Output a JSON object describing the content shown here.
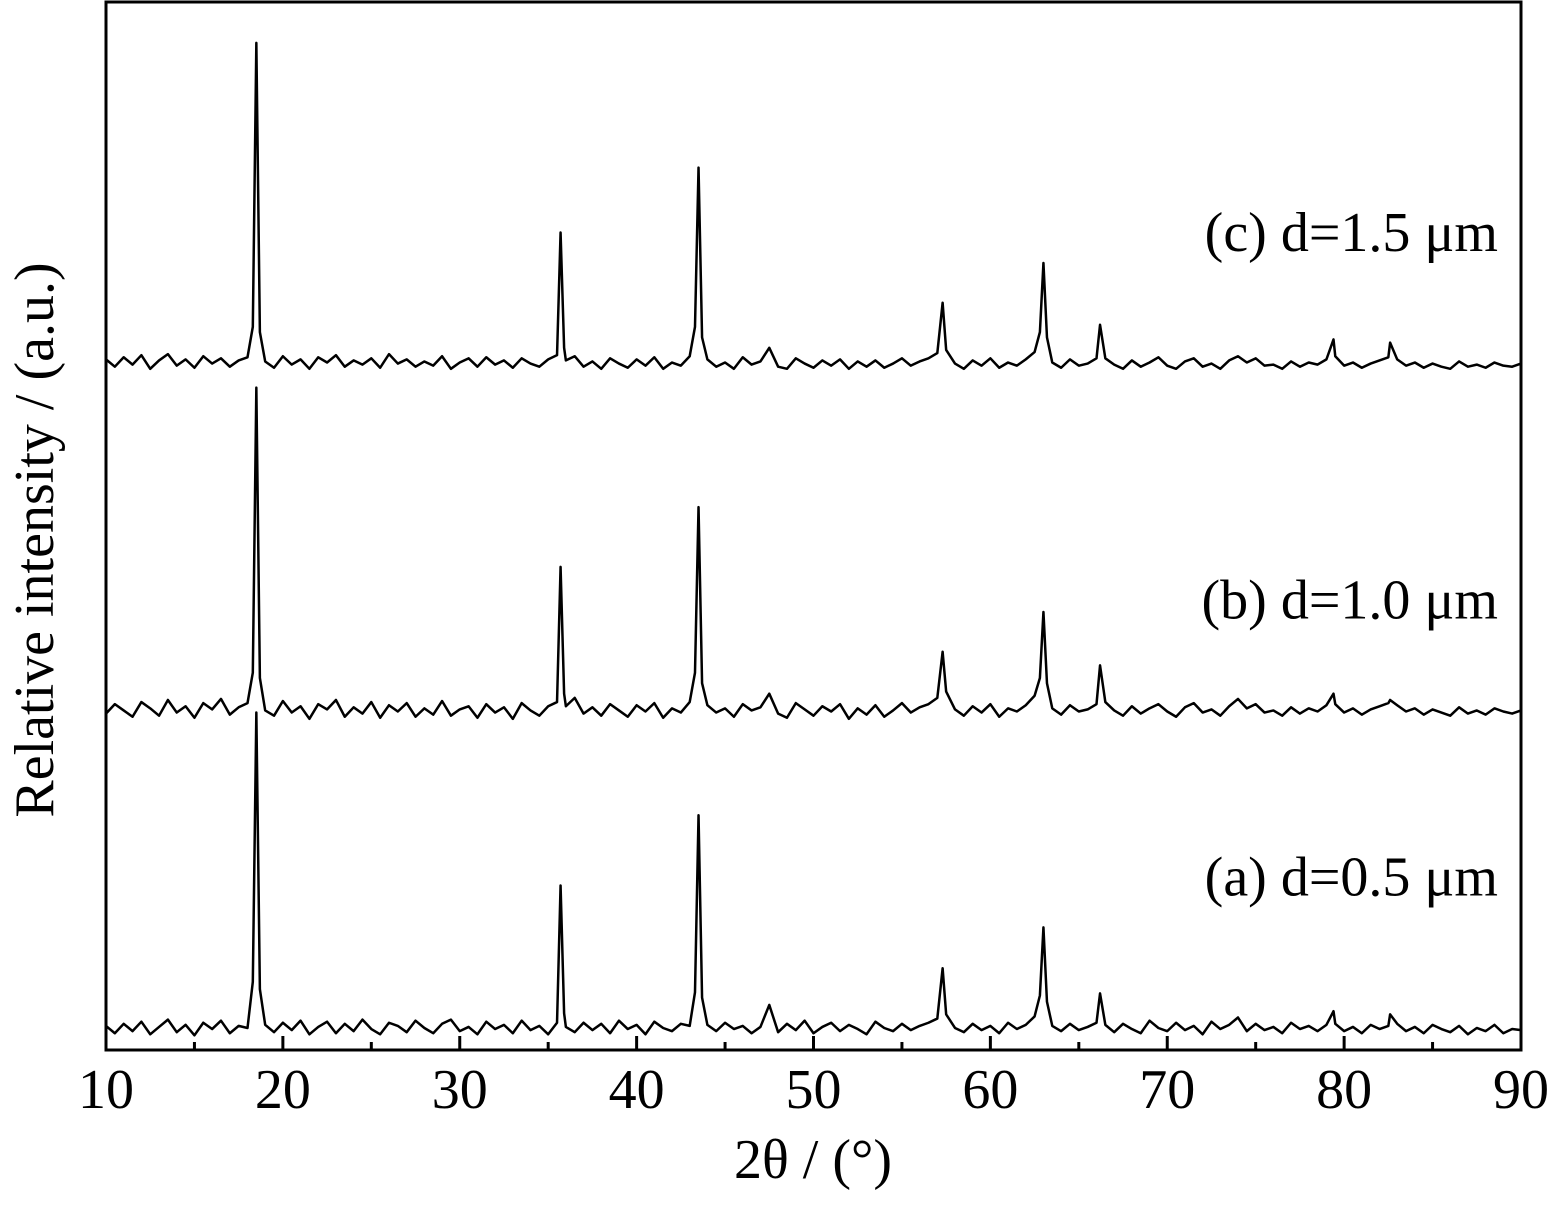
{
  "chart_data": {
    "type": "line",
    "x_label": "2θ / (°)",
    "y_label": "Relative intensity / (a.u.)",
    "xlim": [
      10,
      90
    ],
    "ylim": [
      0,
      100
    ],
    "xticks": [
      10,
      20,
      30,
      40,
      50,
      60,
      70,
      80,
      90
    ],
    "xticks_minor": [
      15,
      25,
      35,
      45,
      55,
      65,
      75,
      85
    ],
    "x": [
      10,
      10.5,
      11,
      11.5,
      12,
      12.5,
      13,
      13.5,
      14,
      14.5,
      15,
      15.5,
      16,
      16.5,
      17,
      17.5,
      18,
      18.3,
      18.5,
      18.7,
      19,
      19.5,
      20,
      20.5,
      21,
      21.5,
      22,
      22.5,
      23,
      23.5,
      24,
      24.5,
      25,
      25.5,
      26,
      26.5,
      27,
      27.5,
      28,
      28.5,
      29,
      29.5,
      30,
      30.5,
      31,
      31.5,
      32,
      32.5,
      33,
      33.5,
      34,
      34.5,
      35,
      35.5,
      35.7,
      35.9,
      36,
      36.5,
      37,
      37.5,
      38,
      38.5,
      39,
      39.5,
      40,
      40.5,
      41,
      41.5,
      42,
      42.5,
      43,
      43.3,
      43.5,
      43.7,
      44,
      44.5,
      45,
      45.5,
      46,
      46.5,
      47,
      47.5,
      48,
      48.5,
      49,
      49.5,
      50,
      50.5,
      51,
      51.5,
      52,
      52.5,
      53,
      53.5,
      54,
      54.5,
      55,
      55.5,
      56,
      56.5,
      57,
      57.3,
      57.5,
      58,
      58.5,
      59,
      59.5,
      60,
      60.5,
      61,
      61.5,
      62,
      62.5,
      62.8,
      63,
      63.2,
      63.5,
      64,
      64.5,
      65,
      65.5,
      66,
      66.2,
      66.5,
      67,
      67.5,
      68,
      68.5,
      69,
      69.5,
      70,
      70.5,
      71,
      71.5,
      72,
      72.5,
      73,
      73.5,
      74,
      74.5,
      75,
      75.5,
      76,
      76.5,
      77,
      77.5,
      78,
      78.5,
      79,
      79.4,
      79.5,
      80,
      80.5,
      81,
      81.5,
      82,
      82.5,
      82.6,
      83,
      83.5,
      84,
      84.5,
      85,
      85.5,
      86,
      86.5,
      87,
      87.5,
      88,
      88.5,
      89,
      89.5,
      90
    ],
    "color": "#000000",
    "series": [
      {
        "name": "(a) d=0.5 μm",
        "color": "#000000",
        "values": [
          2.3,
          1.6,
          2.5,
          1.8,
          2.7,
          1.5,
          2.2,
          2.9,
          1.7,
          2.4,
          1.4,
          2.6,
          2.0,
          2.8,
          1.6,
          2.3,
          2.1,
          6.5,
          32.2,
          5.8,
          2.4,
          1.7,
          2.6,
          1.9,
          2.8,
          1.5,
          2.2,
          2.7,
          1.6,
          2.5,
          1.8,
          2.9,
          2.0,
          1.5,
          2.6,
          2.3,
          1.7,
          2.8,
          2.1,
          1.6,
          2.5,
          2.9,
          1.8,
          2.2,
          1.5,
          2.7,
          2.0,
          2.4,
          1.6,
          2.8,
          1.9,
          2.3,
          1.5,
          2.6,
          15.7,
          3.5,
          2.2,
          1.7,
          2.6,
          1.9,
          2.5,
          1.6,
          2.8,
          2.0,
          2.4,
          1.5,
          2.7,
          2.1,
          1.8,
          2.5,
          2.3,
          5.5,
          22.4,
          5.0,
          2.4,
          1.8,
          2.6,
          2.0,
          2.3,
          1.6,
          2.2,
          4.3,
          1.7,
          2.5,
          1.9,
          2.8,
          1.6,
          2.2,
          2.6,
          1.8,
          2.4,
          2.0,
          1.5,
          2.7,
          2.1,
          1.8,
          2.5,
          1.9,
          2.3,
          2.6,
          3.0,
          7.8,
          3.4,
          2.1,
          1.7,
          2.5,
          1.9,
          2.3,
          1.6,
          2.6,
          2.0,
          2.4,
          3.2,
          5.2,
          11.7,
          4.6,
          2.3,
          1.8,
          2.5,
          1.9,
          2.2,
          2.6,
          5.4,
          2.4,
          1.7,
          2.5,
          2.0,
          1.6,
          2.8,
          2.1,
          1.8,
          2.6,
          1.9,
          2.3,
          1.5,
          2.7,
          2.0,
          2.4,
          3.1,
          1.8,
          2.5,
          1.9,
          2.2,
          1.6,
          2.6,
          2.0,
          2.3,
          1.8,
          2.4,
          3.7,
          2.5,
          1.8,
          2.2,
          1.6,
          2.4,
          2.0,
          2.3,
          3.4,
          2.5,
          1.8,
          2.2,
          1.6,
          2.4,
          2.0,
          1.7,
          2.3,
          1.5,
          2.1,
          1.8,
          2.4,
          1.6,
          2.0,
          1.9
        ]
      },
      {
        "name": "(b) d=1.0 μm",
        "color": "#000000",
        "values": [
          32.1,
          33.0,
          32.4,
          31.8,
          33.2,
          32.6,
          31.9,
          33.4,
          32.2,
          32.8,
          31.7,
          33.1,
          32.5,
          33.5,
          32.0,
          32.7,
          33.1,
          36.0,
          63.2,
          35.5,
          32.4,
          31.9,
          33.3,
          32.2,
          32.8,
          31.6,
          33.0,
          32.5,
          33.4,
          31.8,
          32.7,
          32.1,
          33.2,
          31.7,
          32.9,
          32.3,
          33.1,
          31.8,
          32.6,
          32.0,
          33.3,
          31.9,
          32.5,
          32.8,
          31.7,
          33.0,
          32.2,
          32.7,
          31.6,
          33.1,
          32.4,
          31.9,
          32.8,
          33.2,
          46.1,
          34.0,
          32.8,
          33.6,
          32.1,
          32.7,
          31.9,
          33.0,
          32.4,
          31.8,
          32.9,
          32.3,
          33.1,
          31.7,
          32.6,
          32.2,
          33.2,
          36.0,
          51.8,
          35.0,
          32.9,
          32.2,
          32.6,
          31.8,
          33.0,
          32.4,
          32.7,
          34.0,
          32.1,
          31.7,
          33.1,
          32.5,
          31.9,
          32.8,
          32.3,
          33.0,
          31.6,
          32.6,
          32.0,
          32.9,
          31.8,
          32.4,
          33.1,
          32.2,
          32.7,
          33.0,
          33.6,
          38.0,
          34.2,
          32.5,
          31.9,
          32.8,
          32.2,
          33.0,
          31.8,
          32.6,
          32.3,
          32.9,
          33.8,
          35.5,
          41.8,
          35.0,
          32.6,
          32.0,
          32.9,
          32.3,
          32.5,
          33.0,
          36.7,
          33.2,
          32.4,
          31.9,
          32.8,
          32.1,
          32.6,
          33.0,
          32.3,
          31.8,
          32.7,
          33.1,
          32.2,
          32.5,
          31.9,
          32.8,
          33.5,
          32.6,
          33.0,
          32.2,
          32.4,
          31.9,
          32.7,
          32.1,
          32.6,
          32.3,
          32.9,
          34.0,
          33.0,
          32.2,
          32.6,
          32.0,
          32.5,
          32.8,
          33.1,
          33.4,
          32.9,
          32.3,
          32.6,
          32.0,
          32.5,
          32.2,
          31.9,
          32.7,
          32.1,
          32.4,
          32.0,
          32.6,
          32.3,
          32.1,
          32.4
        ]
      },
      {
        "name": "(c) d=1.5 μm",
        "color": "#000000",
        "values": [
          65.9,
          65.2,
          66.1,
          65.4,
          66.3,
          65.0,
          65.8,
          66.4,
          65.3,
          65.9,
          65.1,
          66.2,
          65.5,
          66.0,
          65.2,
          65.8,
          66.1,
          69.0,
          96.1,
          68.5,
          65.7,
          65.1,
          66.2,
          65.4,
          65.9,
          65.0,
          66.1,
          65.6,
          66.3,
          65.2,
          65.8,
          65.4,
          66.0,
          65.1,
          66.4,
          65.5,
          65.9,
          65.2,
          65.7,
          65.3,
          66.2,
          65.0,
          65.6,
          66.0,
          65.2,
          66.1,
          65.4,
          65.8,
          65.1,
          66.0,
          65.5,
          65.2,
          65.9,
          66.3,
          78.0,
          67.0,
          65.8,
          66.2,
          65.2,
          65.7,
          65.0,
          66.0,
          65.5,
          65.1,
          65.9,
          65.3,
          66.1,
          65.0,
          65.6,
          65.3,
          66.2,
          69.0,
          84.2,
          68.0,
          65.9,
          65.2,
          65.6,
          65.0,
          66.1,
          65.4,
          65.7,
          67.0,
          65.2,
          65.0,
          66.0,
          65.5,
          65.1,
          65.8,
          65.3,
          65.9,
          65.0,
          65.7,
          65.2,
          65.8,
          65.1,
          65.5,
          66.0,
          65.3,
          65.7,
          66.0,
          66.5,
          71.3,
          66.8,
          65.5,
          65.0,
          65.8,
          65.3,
          66.0,
          65.1,
          65.6,
          65.3,
          65.9,
          66.6,
          68.5,
          75.1,
          68.0,
          65.6,
          65.1,
          65.9,
          65.3,
          65.5,
          66.0,
          69.2,
          66.0,
          65.4,
          65.0,
          65.8,
          65.2,
          65.6,
          66.1,
          65.3,
          65.0,
          65.7,
          66.0,
          65.2,
          65.5,
          65.0,
          65.8,
          66.2,
          65.6,
          66.0,
          65.3,
          65.4,
          65.0,
          65.7,
          65.2,
          65.6,
          65.4,
          65.9,
          67.8,
          66.2,
          65.3,
          65.6,
          65.1,
          65.5,
          65.8,
          66.1,
          67.5,
          65.9,
          65.3,
          65.6,
          65.1,
          65.5,
          65.2,
          65.0,
          65.7,
          65.2,
          65.4,
          65.1,
          65.6,
          65.3,
          65.2,
          65.5
        ]
      }
    ]
  }
}
